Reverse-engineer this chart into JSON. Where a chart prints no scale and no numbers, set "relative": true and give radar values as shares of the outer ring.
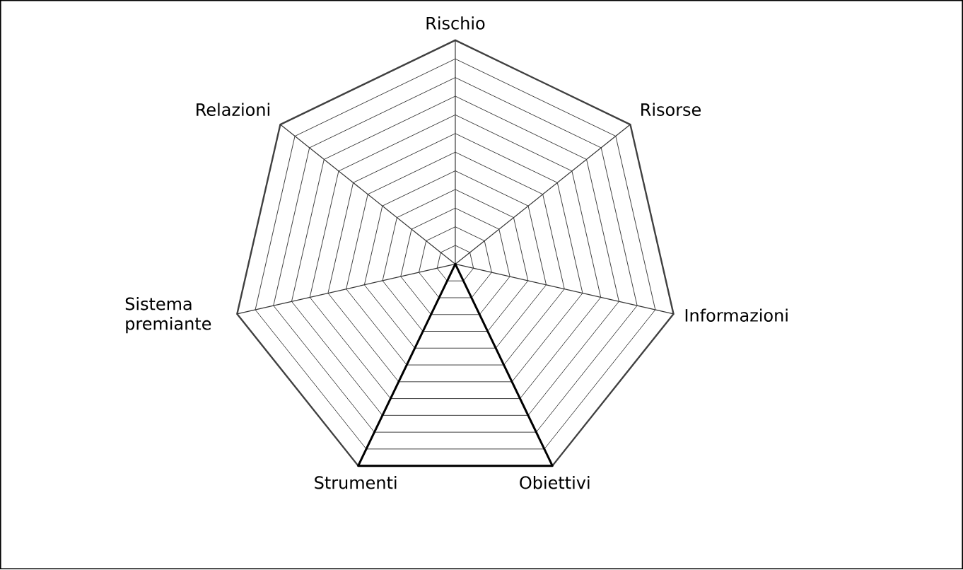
{
  "chart_data": {
    "type": "radar",
    "relative": true,
    "grid": true,
    "categories": [
      "Rischio",
      "Risorse",
      "Informazioni",
      "Obiettivi",
      "Strumenti",
      "Sistema premiante",
      "Relazioni"
    ],
    "series": [
      {
        "color": "#000000",
        "values": [
          0,
          0,
          0,
          1,
          1,
          0,
          0
        ]
      }
    ]
  }
}
